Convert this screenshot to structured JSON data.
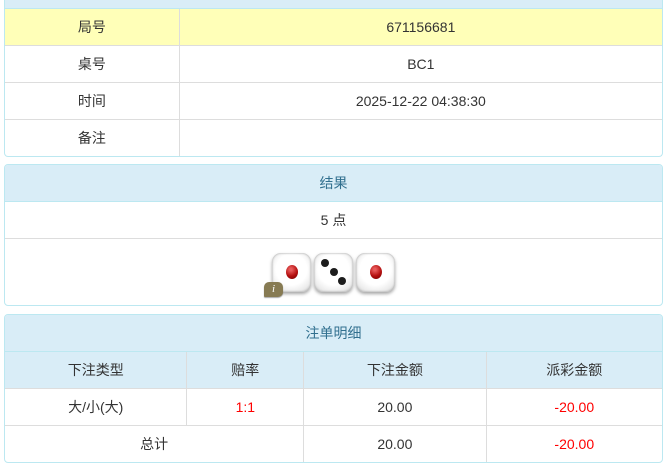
{
  "colors": {
    "blue_bg": "#d9edf7",
    "blue_border": "#bce8f1",
    "blue_text": "#31708f",
    "highlight_yellow": "#ffffb8",
    "negative_red": "#ff0000"
  },
  "game_info": {
    "rows": [
      {
        "label": "局号",
        "value": "671156681"
      },
      {
        "label": "桌号",
        "value": "BC1"
      },
      {
        "label": "时间",
        "value": "2025-12-22 04:38:30"
      },
      {
        "label": "备注",
        "value": ""
      }
    ]
  },
  "result": {
    "title": "结果",
    "points": "5 点",
    "dice": [
      1,
      3,
      1
    ],
    "info_icon_label": "i"
  },
  "bets": {
    "title": "注单明细",
    "columns": [
      "下注类型",
      "赔率",
      "下注金额",
      "派彩金额"
    ],
    "rows": [
      {
        "bet_type": "大/小(大)",
        "odds": "1:1",
        "bet_amount": "20.00",
        "payout": "-20.00"
      }
    ],
    "total": {
      "label": "总计",
      "bet_amount": "20.00",
      "payout": "-20.00"
    }
  }
}
